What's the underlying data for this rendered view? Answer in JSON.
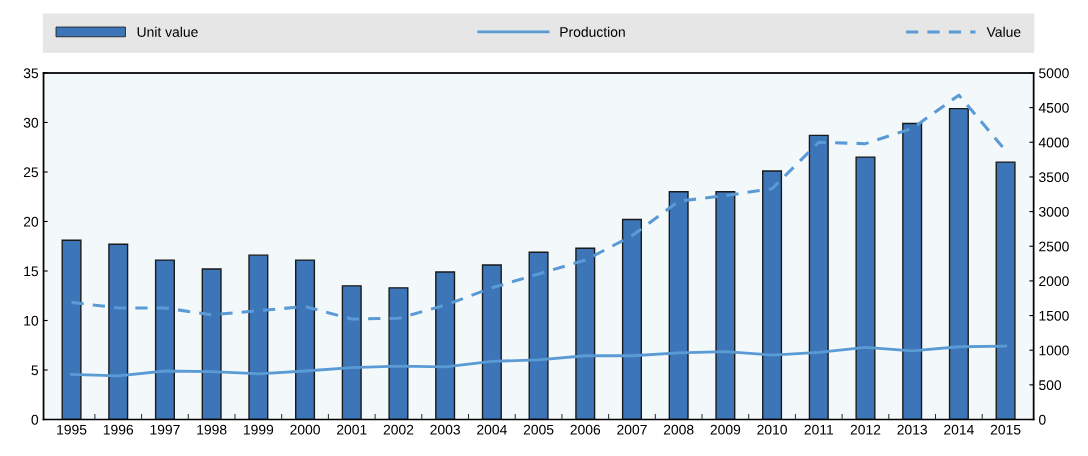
{
  "chart_data": {
    "type": "bar",
    "categories": [
      "1995",
      "1996",
      "1997",
      "1998",
      "1999",
      "2000",
      "2001",
      "2002",
      "2003",
      "2004",
      "2005",
      "2006",
      "2007",
      "2008",
      "2009",
      "2010",
      "2011",
      "2012",
      "2013",
      "2014",
      "2015"
    ],
    "series": [
      {
        "name": "Unit value",
        "color": "#3d76b8",
        "values": [
          18.1,
          17.7,
          16.1,
          15.2,
          16.6,
          16.1,
          13.5,
          13.3,
          14.9,
          15.6,
          16.9,
          17.3,
          20.2,
          23.0,
          23.0,
          25.1,
          28.7,
          26.5,
          29.9,
          31.4,
          26.0
        ]
      },
      {
        "name": "Production",
        "type": "line",
        "axis": "y2",
        "line_style": "solid",
        "color": "#5b9bd5",
        "values": [
          650,
          630,
          700,
          690,
          660,
          700,
          750,
          770,
          760,
          840,
          860,
          920,
          920,
          960,
          980,
          930,
          970,
          1040,
          990,
          1050,
          1060
        ]
      },
      {
        "name": "Value",
        "type": "line",
        "axis": "y2",
        "line_style": "dashed",
        "color": "#5b9bd5",
        "values": [
          1690,
          1610,
          1610,
          1510,
          1570,
          1630,
          1450,
          1460,
          1650,
          1900,
          2100,
          2300,
          2650,
          3150,
          3230,
          3330,
          4000,
          3980,
          4200,
          4680,
          3880
        ]
      }
    ],
    "ylim": [
      0,
      35
    ],
    "yticks": [
      0,
      5,
      10,
      15,
      20,
      25,
      30,
      35
    ],
    "y2lim": [
      0,
      5000
    ],
    "y2ticks": [
      0,
      500,
      1000,
      1500,
      2000,
      2500,
      3000,
      3500,
      4000,
      4500,
      5000
    ],
    "legend": "top",
    "grid": false
  }
}
